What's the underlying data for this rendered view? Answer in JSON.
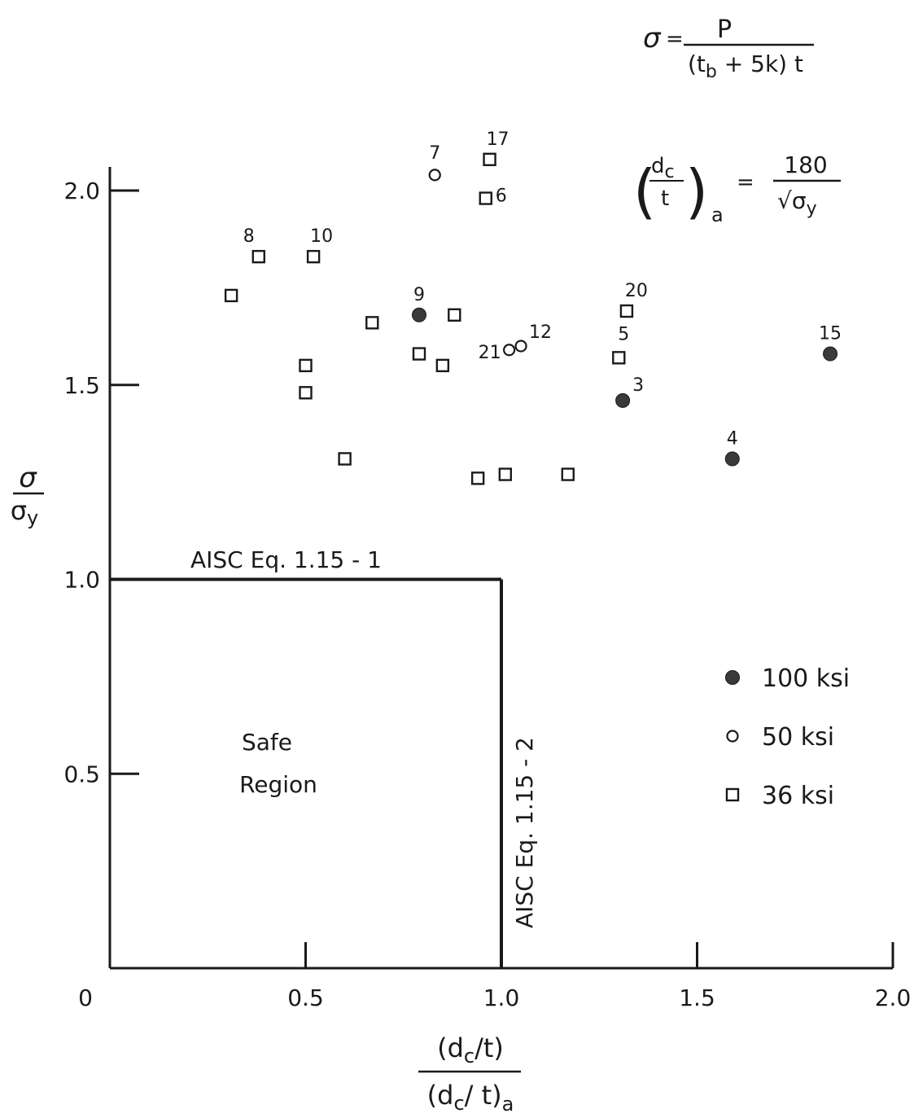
{
  "chart_data": {
    "type": "scatter",
    "xlim": [
      0,
      2.0
    ],
    "ylim": [
      0,
      2.0
    ],
    "x_ticks": [
      {
        "value": 0,
        "label": "0"
      },
      {
        "value": 0.5,
        "label": "0.5"
      },
      {
        "value": 1.0,
        "label": "1.0"
      },
      {
        "value": 1.5,
        "label": "1.5"
      },
      {
        "value": 2.0,
        "label": "2.0"
      }
    ],
    "y_ticks": [
      {
        "value": 0.5,
        "label": "0.5"
      },
      {
        "value": 1.0,
        "label": "1.0"
      },
      {
        "value": 1.5,
        "label": "1.5"
      },
      {
        "value": 2.0,
        "label": "2.0"
      }
    ],
    "xlabel": {
      "numerator": "(d_c/t)",
      "denominator": "(d_c/t)_a"
    },
    "ylabel": {
      "numerator": "σ",
      "denominator": "σ_y"
    },
    "series": [
      {
        "name": "100 ksi",
        "marker": "filled-circle",
        "points": [
          {
            "x": 0.79,
            "y": 1.68,
            "label": "9"
          },
          {
            "x": 1.31,
            "y": 1.46,
            "label": "3"
          },
          {
            "x": 1.59,
            "y": 1.31,
            "label": "4"
          },
          {
            "x": 1.84,
            "y": 1.58,
            "label": "15"
          }
        ]
      },
      {
        "name": "50 ksi",
        "marker": "open-circle",
        "points": [
          {
            "x": 0.83,
            "y": 2.04,
            "label": "7"
          },
          {
            "x": 1.02,
            "y": 1.59,
            "label": "21"
          },
          {
            "x": 1.05,
            "y": 1.6,
            "label": "12"
          }
        ]
      },
      {
        "name": "36 ksi",
        "marker": "open-square",
        "points": [
          {
            "x": 0.97,
            "y": 2.08,
            "label": "17"
          },
          {
            "x": 0.96,
            "y": 1.98,
            "label": "6"
          },
          {
            "x": 0.38,
            "y": 1.83,
            "label": "8"
          },
          {
            "x": 0.52,
            "y": 1.83,
            "label": "10"
          },
          {
            "x": 0.31,
            "y": 1.73,
            "label": ""
          },
          {
            "x": 0.67,
            "y": 1.66,
            "label": ""
          },
          {
            "x": 0.88,
            "y": 1.68,
            "label": ""
          },
          {
            "x": 0.79,
            "y": 1.58,
            "label": ""
          },
          {
            "x": 0.85,
            "y": 1.55,
            "label": ""
          },
          {
            "x": 0.5,
            "y": 1.55,
            "label": ""
          },
          {
            "x": 0.5,
            "y": 1.48,
            "label": ""
          },
          {
            "x": 0.6,
            "y": 1.31,
            "label": ""
          },
          {
            "x": 0.94,
            "y": 1.26,
            "label": ""
          },
          {
            "x": 1.01,
            "y": 1.27,
            "label": ""
          },
          {
            "x": 1.17,
            "y": 1.27,
            "label": ""
          },
          {
            "x": 1.32,
            "y": 1.69,
            "label": "20"
          },
          {
            "x": 1.3,
            "y": 1.57,
            "label": "5"
          }
        ]
      }
    ],
    "boundary": {
      "y": 1.0,
      "x": 1.0
    },
    "annotations": {
      "horizontal_line_label": "AISC   Eq.  1.15 - 1",
      "vertical_line_label": "AISC  Eq.  1.15 - 2",
      "region_label_line1": "Safe",
      "region_label_line2": "Region"
    },
    "formula_top": {
      "lhs": "σ",
      "eq": "=",
      "numerator": "P",
      "denominator": "(t_b + 5k) t"
    },
    "formula_mid": {
      "lhs": "(d_c/t)_a",
      "eq": "=",
      "numerator": "180",
      "denominator": "√σ_y"
    },
    "legend": {
      "placement": "right"
    }
  }
}
